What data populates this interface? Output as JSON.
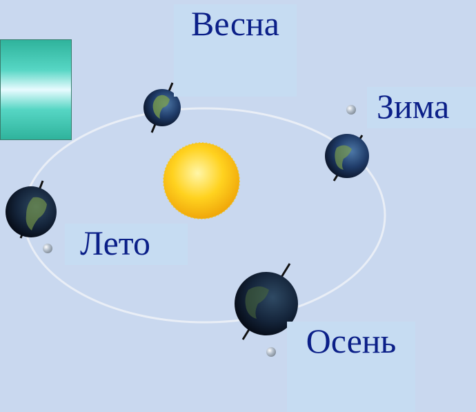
{
  "seasons": [
    {
      "key": "spring",
      "label": "Весна"
    },
    {
      "key": "winter",
      "label": "Зима"
    },
    {
      "key": "summer",
      "label": "Лето"
    },
    {
      "key": "autumn",
      "label": "Осень"
    }
  ],
  "colors": {
    "background": "#c9d8ef",
    "label_text": "#0b1f88",
    "label_bg": "#c6dcf2",
    "orbit": "#e9eef6",
    "sun": "#ffd21f",
    "ocean": "#1f3b68",
    "land": "#7ea04a",
    "teal": "#2fb39c"
  },
  "icons": [
    "sun-icon",
    "earth-icon",
    "bullet-icon"
  ]
}
